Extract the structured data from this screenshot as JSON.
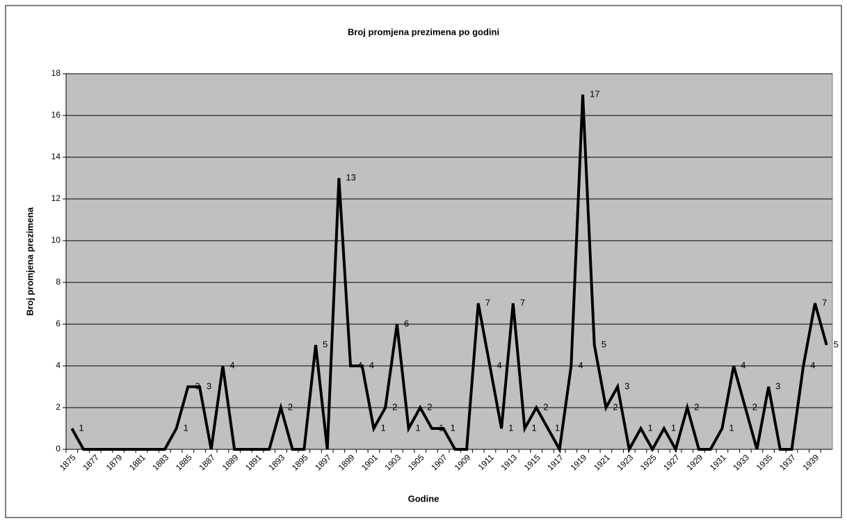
{
  "chart_data": {
    "type": "line",
    "title": "Broj promjena prezimena po godini",
    "x_label": "Godine",
    "y_label": "Broj promjena prezimena",
    "categories": [
      "1875",
      null,
      "1877",
      null,
      "1879",
      null,
      "1881",
      null,
      "1883",
      null,
      "1885",
      null,
      "1887",
      null,
      "1889",
      null,
      "1891",
      null,
      "1893",
      null,
      "1895",
      null,
      "1897",
      null,
      "1899",
      null,
      "1901",
      null,
      "1903",
      null,
      "1905",
      null,
      "1907",
      null,
      "1909",
      null,
      "1911",
      null,
      "1913",
      null,
      "1915",
      null,
      "1917",
      null,
      "1919",
      null,
      "1921",
      null,
      "1923",
      null,
      "1925",
      null,
      "1927",
      null,
      "1929",
      null,
      "1931",
      null,
      "1933",
      null,
      "1935",
      null,
      "1937",
      null,
      "1939",
      null
    ],
    "series": [
      {
        "name": "Broj promjena prezimena",
        "color": "#000000",
        "values": [
          1,
          0,
          0,
          0,
          0,
          0,
          0,
          0,
          0,
          1,
          3,
          3,
          0,
          4,
          0,
          0,
          0,
          0,
          2,
          0,
          0,
          5,
          0,
          13,
          4,
          4,
          1,
          2,
          6,
          1,
          2,
          1,
          1,
          0,
          0,
          7,
          4,
          1,
          7,
          1,
          2,
          1,
          0,
          4,
          17,
          5,
          2,
          3,
          0,
          1,
          0,
          1,
          0,
          2,
          0,
          0,
          1,
          4,
          2,
          0,
          3,
          0,
          0,
          4,
          7,
          5
        ]
      }
    ],
    "ylim": [
      0,
      18
    ],
    "yticks": [
      0,
      2,
      4,
      6,
      8,
      10,
      12,
      14,
      16,
      18
    ],
    "grid": true,
    "plot_background": "#c0c0c0"
  }
}
